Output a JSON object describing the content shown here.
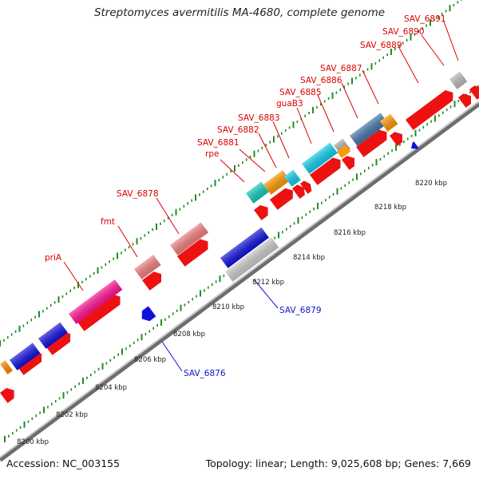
{
  "title": "Streptomyces avermitilis MA-4680, complete genome",
  "accession": "Accession: NC_003155",
  "topology": "Topology: linear; Length: 9,025,608 bp; Genes: 7,669",
  "colors": {
    "forward_label": "#dd0000",
    "reverse_label": "#1111cc",
    "backbone": "#999999",
    "tick": "#228b22"
  },
  "tick_labels": [
    "8200 kbp",
    "8202 kbp",
    "8204 kbp",
    "8206 kbp",
    "8208 kbp",
    "8210 kbp",
    "8212 kbp",
    "8214 kbp",
    "8216 kbp",
    "8218 kbp",
    "8220 kbp"
  ],
  "gene_labels": {
    "forward": [
      "priA",
      "fmt",
      "SAV_6878",
      "rpe",
      "SAV_6881",
      "SAV_6882",
      "SAV_6883",
      "guaB3",
      "SAV_6885",
      "SAV_6886",
      "SAV_6887",
      "SAV_6889",
      "SAV_6890",
      "SAV_6891"
    ],
    "reverse": [
      "SAV_6876",
      "SAV_6879"
    ]
  }
}
